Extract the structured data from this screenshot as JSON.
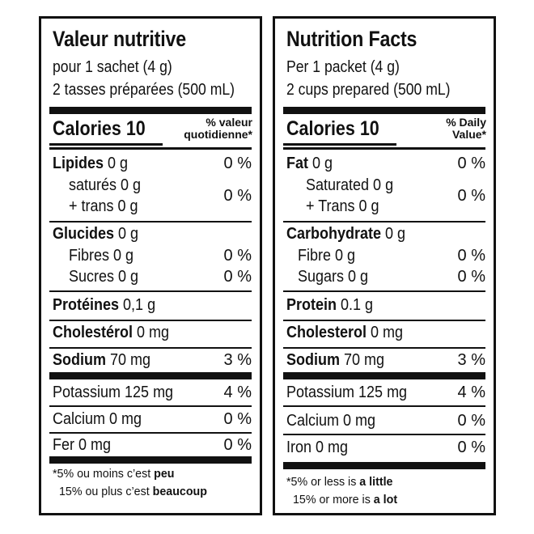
{
  "fr": {
    "title": "Valeur nutritive",
    "serving_line1": "pour 1 sachet (4 g)",
    "serving_line2": "2 tasses préparées (500 mL)",
    "calories_label": "Calories 10",
    "dv_header_line1": "% valeur",
    "dv_header_line2": "quotidienne*",
    "fat_label": "Lipides",
    "fat_amount": " 0 g",
    "fat_pct": "0 %",
    "saturated": "saturés 0 g",
    "trans": "+ trans 0 g",
    "sat_trans_pct": "0 %",
    "carb_label": "Glucides",
    "carb_amount": " 0 g",
    "fibre": "Fibres 0 g",
    "fibre_pct": "0 %",
    "sugars": "Sucres 0 g",
    "sugars_pct": "0 %",
    "protein_label": "Protéines",
    "protein_amount": " 0,1 g",
    "cholesterol_label": "Cholestérol",
    "cholesterol_amount": " 0 mg",
    "sodium_label": "Sodium",
    "sodium_amount": " 70 mg",
    "sodium_pct": "3 %",
    "potassium": "Potassium 125 mg",
    "potassium_pct": "4 %",
    "calcium": "Calcium 0 mg",
    "calcium_pct": "0 %",
    "iron": "Fer 0 mg",
    "iron_pct": "0 %",
    "foot1_text": "*5% ou moins c’est ",
    "foot1_bold": "peu",
    "foot2_text": "15% ou plus c’est ",
    "foot2_bold": "beaucoup"
  },
  "en": {
    "title": "Nutrition Facts",
    "serving_line1": "Per 1 packet (4 g)",
    "serving_line2": "2 cups prepared (500 mL)",
    "calories_label": "Calories 10",
    "dv_header_line1": "% Daily",
    "dv_header_line2": "Value*",
    "fat_label": "Fat",
    "fat_amount": " 0 g",
    "fat_pct": "0 %",
    "saturated": "Saturated 0 g",
    "trans": "+ Trans 0 g",
    "sat_trans_pct": "0 %",
    "carb_label": "Carbohydrate",
    "carb_amount": " 0 g",
    "fibre": "Fibre 0 g",
    "fibre_pct": "0 %",
    "sugars": "Sugars 0 g",
    "sugars_pct": "0 %",
    "protein_label": "Protein",
    "protein_amount": " 0.1 g",
    "cholesterol_label": "Cholesterol",
    "cholesterol_amount": " 0 mg",
    "sodium_label": "Sodium",
    "sodium_amount": " 70 mg",
    "sodium_pct": "3 %",
    "potassium": "Potassium 125 mg",
    "potassium_pct": "4 %",
    "calcium": "Calcium 0 mg",
    "calcium_pct": "0 %",
    "iron": "Iron 0 mg",
    "iron_pct": "0 %",
    "foot1_text": "*5% or less is ",
    "foot1_bold": "a little",
    "foot2_text": "15% or more is ",
    "foot2_bold": "a lot"
  }
}
